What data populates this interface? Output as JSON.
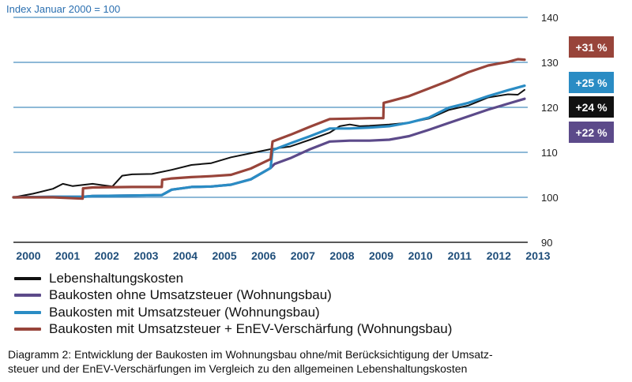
{
  "chart_data": {
    "type": "line",
    "subtitle": "Index Januar 2000 = 100",
    "ylim": [
      90,
      140
    ],
    "yticks": [
      90,
      100,
      110,
      120,
      130,
      140
    ],
    "xlim": [
      2000,
      2013
    ],
    "xticks": [
      "2000",
      "2001",
      "2002",
      "2003",
      "2004",
      "2005",
      "2006",
      "2007",
      "2008",
      "2009",
      "2010",
      "2011",
      "2012",
      "2013"
    ],
    "grid": true,
    "legend_position": "bottom-left",
    "series": [
      {
        "name": "Lebenshaltungskosten",
        "color": "#111111",
        "end_label": "+24 %",
        "x": [
          2000.0,
          2000.5,
          2001.0,
          2001.25,
          2001.5,
          2002.0,
          2002.5,
          2002.75,
          2003.0,
          2003.5,
          2004.0,
          2004.5,
          2005.0,
          2005.5,
          2006.0,
          2006.5,
          2007.0,
          2007.5,
          2008.0,
          2008.25,
          2008.5,
          2008.75,
          2009.0,
          2009.5,
          2010.0,
          2010.5,
          2011.0,
          2011.5,
          2012.0,
          2012.5,
          2012.75,
          2012.92
        ],
        "y": [
          100.0,
          100.8,
          101.9,
          103.0,
          102.5,
          103.0,
          102.4,
          104.8,
          105.1,
          105.2,
          106.1,
          107.2,
          107.6,
          108.9,
          109.8,
          110.7,
          111.3,
          112.8,
          114.4,
          115.8,
          116.2,
          115.8,
          115.9,
          116.2,
          116.6,
          117.5,
          119.4,
          120.4,
          122.2,
          122.9,
          122.8,
          123.9
        ]
      },
      {
        "name": "Baukosten ohne Umsatzsteuer (Wohnungsbau)",
        "color": "#5c4a8a",
        "end_label": "+22 %",
        "x": [
          2000.0,
          2001.0,
          2001.75,
          2002.0,
          2003.0,
          2003.75,
          2004.0,
          2004.5,
          2005.0,
          2005.5,
          2006.0,
          2006.5,
          2006.6,
          2007.0,
          2007.5,
          2008.0,
          2008.5,
          2009.0,
          2009.5,
          2010.0,
          2010.5,
          2011.0,
          2011.5,
          2012.0,
          2012.5,
          2012.92
        ],
        "y": [
          100.0,
          100.1,
          100.1,
          100.3,
          100.4,
          100.5,
          101.7,
          102.3,
          102.4,
          102.8,
          104.0,
          106.5,
          107.4,
          108.7,
          110.7,
          112.4,
          112.6,
          112.6,
          112.8,
          113.6,
          115.0,
          116.5,
          118.0,
          119.5,
          120.8,
          121.9
        ]
      },
      {
        "name": "Baukosten mit Umsatzsteuer (Wohnungsbau)",
        "color": "#2a8cc4",
        "end_label": "+25 %",
        "x": [
          2000.0,
          2001.0,
          2001.75,
          2002.0,
          2003.0,
          2003.75,
          2004.0,
          2004.5,
          2005.0,
          2005.5,
          2006.0,
          2006.5,
          2006.55,
          2007.0,
          2007.5,
          2008.0,
          2008.5,
          2009.0,
          2009.5,
          2010.0,
          2010.5,
          2011.0,
          2011.5,
          2012.0,
          2012.5,
          2012.92
        ],
        "y": [
          100.0,
          100.1,
          100.1,
          100.3,
          100.4,
          100.5,
          101.7,
          102.3,
          102.4,
          102.8,
          104.0,
          106.5,
          110.5,
          112.0,
          113.6,
          115.3,
          115.3,
          115.5,
          115.8,
          116.6,
          117.7,
          119.9,
          121.0,
          122.5,
          123.8,
          124.8
        ]
      },
      {
        "name": "Baukosten mit Umsatzsteuer + EnEV-Verschärfung (Wohnungsbau)",
        "color": "#98443a",
        "end_label": "+31 %",
        "x": [
          2000.0,
          2001.0,
          2001.75,
          2001.76,
          2002.0,
          2003.0,
          2003.75,
          2003.76,
          2004.0,
          2004.5,
          2005.0,
          2005.5,
          2006.0,
          2006.5,
          2006.55,
          2007.0,
          2007.5,
          2008.0,
          2008.5,
          2009.0,
          2009.35,
          2009.36,
          2009.5,
          2010.0,
          2010.5,
          2011.0,
          2011.5,
          2012.0,
          2012.5,
          2012.75,
          2012.92
        ],
        "y": [
          100.0,
          100.0,
          99.7,
          102.0,
          102.2,
          102.3,
          102.3,
          103.9,
          104.2,
          104.5,
          104.7,
          105.0,
          106.4,
          108.5,
          112.4,
          113.9,
          115.7,
          117.4,
          117.5,
          117.6,
          117.6,
          121.0,
          121.3,
          122.5,
          124.2,
          125.9,
          127.8,
          129.3,
          130.1,
          130.7,
          130.6
        ]
      }
    ]
  },
  "caption_line1": "Diagramm 2: Entwicklung der Baukosten im Wohnungsbau ohne/mit Berücksichtigung der Umsatz-",
  "caption_line2": "steuer und der EnEV-Verschärfungen im Vergleich zu den allgemeinen Lebenshaltungskosten"
}
